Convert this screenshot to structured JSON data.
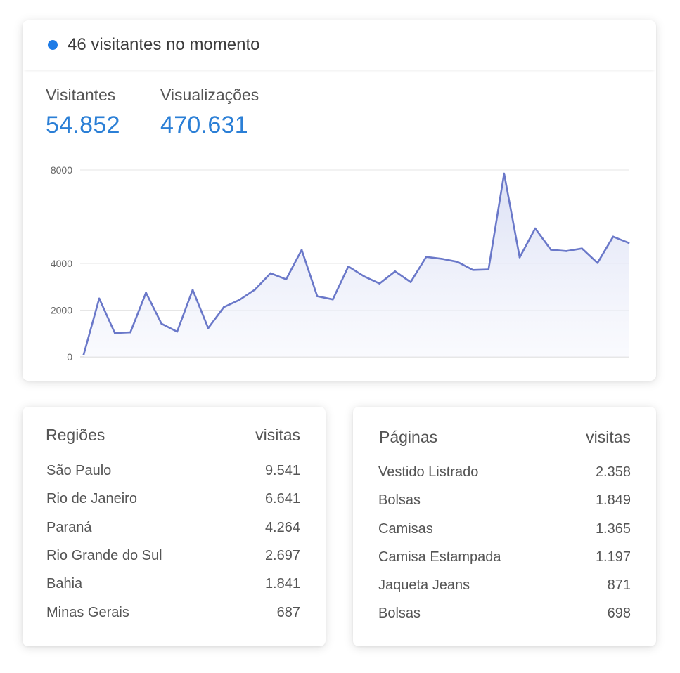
{
  "live": {
    "text": "46 visitantes no momento",
    "dot_color": "#1e7be6"
  },
  "metrics": {
    "visitors": {
      "label": "Visitantes",
      "value": "54.852"
    },
    "views": {
      "label": "Visualizações",
      "value": "470.631"
    }
  },
  "chart_data": {
    "type": "area",
    "title": "",
    "xlabel": "",
    "ylabel": "",
    "ylim": [
      0,
      8000
    ],
    "yticks": [
      "0",
      "2000",
      "4000",
      "8000"
    ],
    "grid": true,
    "color": "#6a78c9",
    "series": [
      {
        "values": [
          100,
          2500,
          1020,
          1050,
          2750,
          1420,
          1080,
          2870,
          1230,
          2130,
          2440,
          2880,
          3580,
          3320,
          4580,
          2600,
          2460,
          3870,
          3450,
          3140,
          3660,
          3200,
          4280,
          4200,
          4070,
          3720,
          3740,
          7850,
          4260,
          5500,
          4590,
          4530,
          4640,
          4020,
          5150,
          4880
        ]
      }
    ]
  },
  "regions": {
    "header": "Regiões",
    "col": "visitas",
    "rows": [
      {
        "name": "São Paulo",
        "value": "9.541"
      },
      {
        "name": "Rio de Janeiro",
        "value": "6.641"
      },
      {
        "name": "Paraná",
        "value": "4.264"
      },
      {
        "name": "Rio Grande do Sul",
        "value": "2.697"
      },
      {
        "name": "Bahia",
        "value": "1.841"
      },
      {
        "name": "Minas Gerais",
        "value": "687"
      }
    ]
  },
  "pages": {
    "header": "Páginas",
    "col": "visitas",
    "rows": [
      {
        "name": "Vestido Listrado",
        "value": "2.358"
      },
      {
        "name": "Bolsas",
        "value": "1.849"
      },
      {
        "name": "Camisas",
        "value": "1.365"
      },
      {
        "name": "Camisa Estampada",
        "value": "1.197"
      },
      {
        "name": "Jaqueta Jeans",
        "value": "871"
      },
      {
        "name": "Bolsas",
        "value": "698"
      }
    ]
  }
}
